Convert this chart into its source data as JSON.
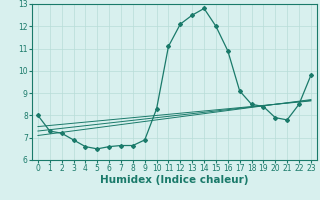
{
  "title": "",
  "xlabel": "Humidex (Indice chaleur)",
  "ylabel": "",
  "x_values": [
    0,
    1,
    2,
    3,
    4,
    5,
    6,
    7,
    8,
    9,
    10,
    11,
    12,
    13,
    14,
    15,
    16,
    17,
    18,
    19,
    20,
    21,
    22,
    23
  ],
  "main_line": [
    8.0,
    7.3,
    7.2,
    6.9,
    6.6,
    6.5,
    6.6,
    6.65,
    6.65,
    6.9,
    8.3,
    11.1,
    12.1,
    12.5,
    12.8,
    12.0,
    10.9,
    9.1,
    8.5,
    8.4,
    7.9,
    7.8,
    8.5,
    9.8
  ],
  "trend_lines": [
    [
      7.5,
      7.55,
      7.6,
      7.65,
      7.7,
      7.75,
      7.8,
      7.85,
      7.9,
      7.95,
      8.0,
      8.05,
      8.1,
      8.15,
      8.2,
      8.25,
      8.3,
      8.35,
      8.4,
      8.45,
      8.5,
      8.55,
      8.6,
      8.65
    ],
    [
      7.3,
      7.36,
      7.42,
      7.48,
      7.54,
      7.6,
      7.66,
      7.72,
      7.78,
      7.84,
      7.9,
      7.96,
      8.02,
      8.08,
      8.14,
      8.2,
      8.26,
      8.32,
      8.38,
      8.44,
      8.5,
      8.56,
      8.62,
      8.68
    ],
    [
      7.1,
      7.17,
      7.24,
      7.31,
      7.38,
      7.45,
      7.52,
      7.59,
      7.66,
      7.73,
      7.8,
      7.87,
      7.94,
      8.01,
      8.08,
      8.15,
      8.22,
      8.29,
      8.36,
      8.43,
      8.5,
      8.57,
      8.64,
      8.71
    ]
  ],
  "line_color": "#1a7a6a",
  "background_color": "#d8f0ee",
  "grid_color": "#b8ddd8",
  "xlim": [
    -0.5,
    23.5
  ],
  "ylim": [
    6.0,
    13.0
  ],
  "yticks": [
    6,
    7,
    8,
    9,
    10,
    11,
    12,
    13
  ],
  "xticks": [
    0,
    1,
    2,
    3,
    4,
    5,
    6,
    7,
    8,
    9,
    10,
    11,
    12,
    13,
    14,
    15,
    16,
    17,
    18,
    19,
    20,
    21,
    22,
    23
  ],
  "tick_fontsize": 5.5,
  "label_fontsize": 7.5
}
